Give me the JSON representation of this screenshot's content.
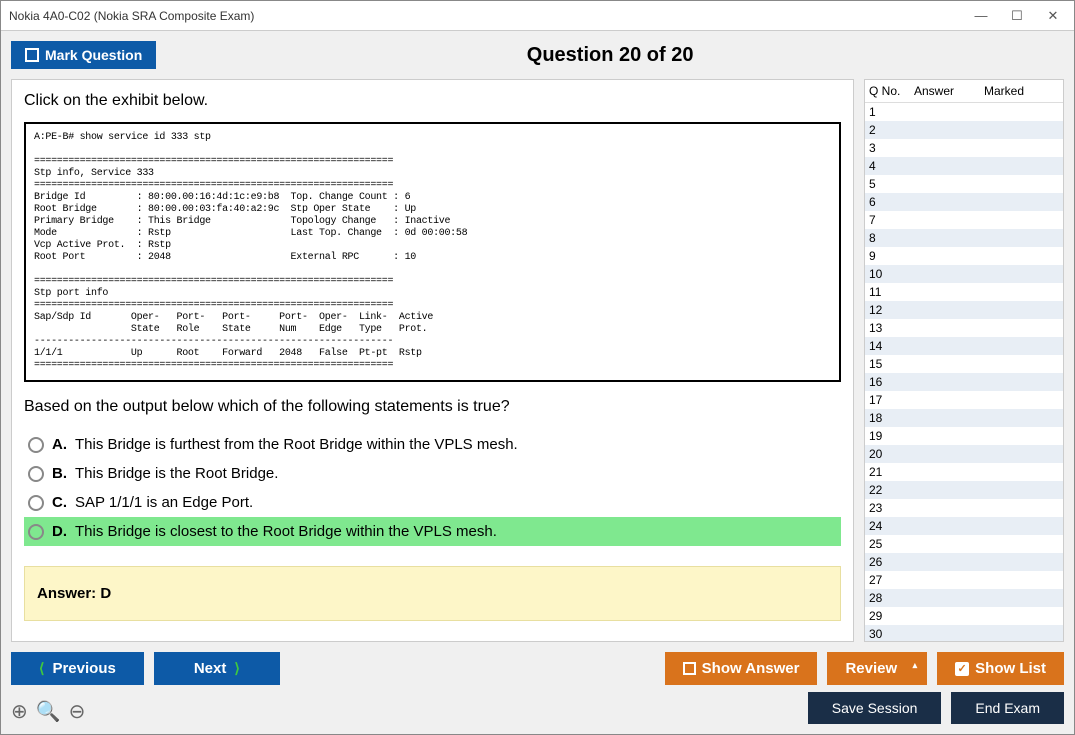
{
  "window": {
    "title": "Nokia 4A0-C02 (Nokia SRA Composite Exam)"
  },
  "topbar": {
    "mark_label": "Mark Question",
    "question_header": "Question 20 of 20"
  },
  "question": {
    "instruction": "Click on the exhibit below.",
    "exhibit": "A:PE-B# show service id 333 stp\n\n===============================================================\nStp info, Service 333\n===============================================================\nBridge Id         : 80:00.00:16:4d:1c:e9:b8  Top. Change Count : 6\nRoot Bridge       : 80:00.00:03:fa:40:a2:9c  Stp Oper State    : Up\nPrimary Bridge    : This Bridge              Topology Change   : Inactive\nMode              : Rstp                     Last Top. Change  : 0d 00:00:58\nVcp Active Prot.  : Rstp\nRoot Port         : 2048                     External RPC      : 10\n\n===============================================================\nStp port info\n===============================================================\nSap/Sdp Id       Oper-   Port-   Port-     Port-  Oper-  Link-  Active\n                 State   Role    State     Num    Edge   Type   Prot.\n---------------------------------------------------------------\n1/1/1            Up      Root    Forward   2048   False  Pt-pt  Rstp\n===============================================================",
    "text": "Based on the output below which of the following statements is true?",
    "options": [
      {
        "letter": "A.",
        "text": "This Bridge is furthest from the Root Bridge within the VPLS mesh.",
        "selected": false
      },
      {
        "letter": "B.",
        "text": "This Bridge is the Root Bridge.",
        "selected": false
      },
      {
        "letter": "C.",
        "text": "SAP 1/1/1 is an Edge Port.",
        "selected": false
      },
      {
        "letter": "D.",
        "text": "This Bridge is closest to the Root Bridge within the VPLS mesh.",
        "selected": true
      }
    ],
    "answer_label": "Answer: D"
  },
  "sidebar": {
    "headers": {
      "qno": "Q No.",
      "answer": "Answer",
      "marked": "Marked"
    },
    "row_count": 30
  },
  "buttons": {
    "previous": "Previous",
    "next": "Next",
    "show_answer": "Show Answer",
    "review": "Review",
    "show_list": "Show List",
    "save_session": "Save Session",
    "end_exam": "End Exam"
  },
  "colors": {
    "blue": "#0d5aa7",
    "orange": "#d9731c",
    "dark": "#1a2e47",
    "selected_bg": "#7fe88f",
    "answer_bg": "#fdf6c8"
  }
}
